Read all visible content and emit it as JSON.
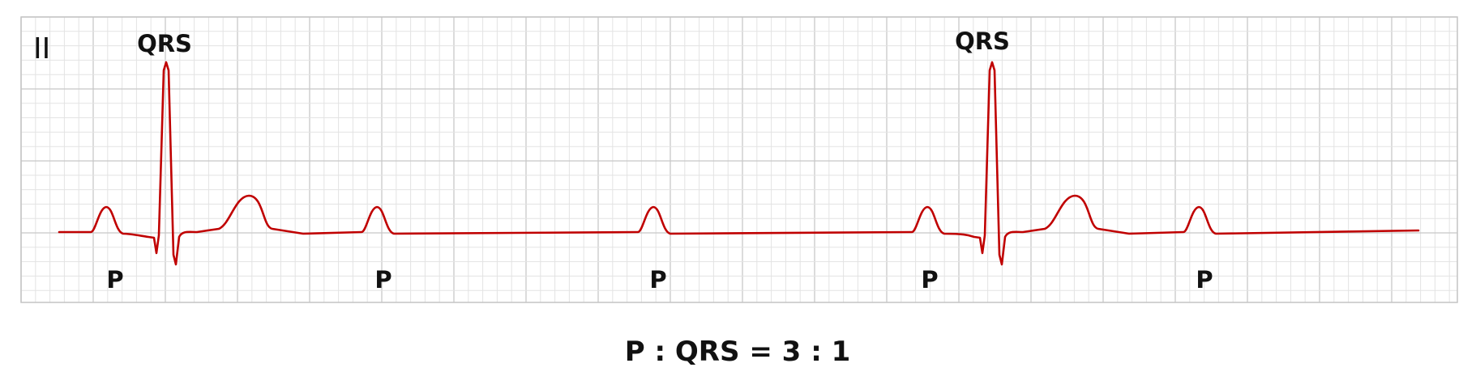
{
  "lead": "II",
  "qrs_label": "QRS",
  "p_label": "P",
  "ratio": {
    "p": "P",
    "colon": ":",
    "qrs": "QRS",
    "equals": "=",
    "left": "3",
    "right": "1"
  },
  "colors": {
    "trace": "#c00000",
    "grid_fine": "#e3e3e3",
    "grid_major": "#c8c8c8",
    "text": "#111111"
  }
}
